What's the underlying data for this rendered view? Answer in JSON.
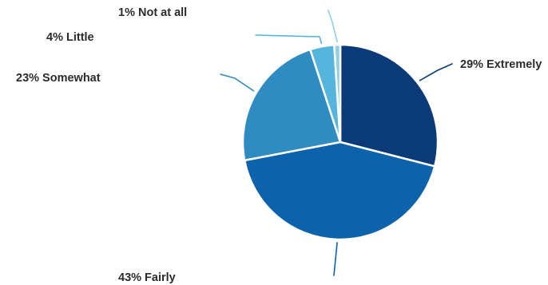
{
  "chart_data": {
    "type": "pie",
    "title": "",
    "slices": [
      {
        "label": "29% Extremely",
        "value": 29,
        "color": "#0b3a78"
      },
      {
        "label": "43% Fairly",
        "value": 43,
        "color": "#0d63ab"
      },
      {
        "label": "23% Somewhat",
        "value": 23,
        "color": "#2f8cc1"
      },
      {
        "label": "4% Little",
        "value": 4,
        "color": "#55b5dd"
      },
      {
        "label": "1% Not at all",
        "value": 1,
        "color": "#8fd0e3"
      }
    ],
    "start": "12 o'clock",
    "direction": "clockwise",
    "legend": "none"
  }
}
